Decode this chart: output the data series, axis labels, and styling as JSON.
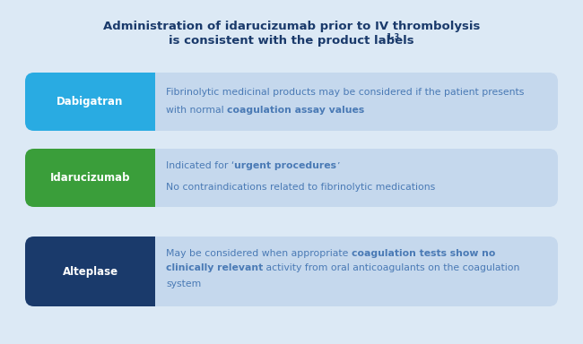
{
  "title_line1": "Administration of idarucizumab prior to IV thrombolysis",
  "title_line2": "is consistent with the product labels",
  "title_superscript": "1-3",
  "background_color": "#dce9f5",
  "row_bg_color": "#c5d8ed",
  "title_color": "#1a3a6b",
  "rows": [
    {
      "label": "Dabigatran",
      "label_color": "#ffffff",
      "label_bg": "#29abe2",
      "lines": [
        [
          {
            "text": "Fibrinolytic medicinal products may be considered if the patient presents",
            "bold": false
          }
        ],
        [
          {
            "text": "with normal ",
            "bold": false
          },
          {
            "text": "coagulation assay values",
            "bold": true
          }
        ]
      ],
      "text_color": "#4a7ab5"
    },
    {
      "label": "Idarucizumab",
      "label_color": "#ffffff",
      "label_bg": "#3a9e3a",
      "lines": [
        [
          {
            "text": "Indicated for ‘",
            "bold": false
          },
          {
            "text": "urgent procedures",
            "bold": true
          },
          {
            "text": "’",
            "bold": false
          }
        ],
        [],
        [
          {
            "text": "No contraindications related to fibrinolytic medications",
            "bold": false
          }
        ]
      ],
      "text_color": "#4a7ab5"
    },
    {
      "label": "Alteplase",
      "label_color": "#ffffff",
      "label_bg": "#1a3a6b",
      "lines": [
        [
          {
            "text": "May be considered when appropriate ",
            "bold": false
          },
          {
            "text": "coagulation tests show no",
            "bold": true
          }
        ],
        [
          {
            "text": "clinically relevant",
            "bold": true
          },
          {
            "text": " activity from oral anticoagulants on the coagulation",
            "bold": false
          }
        ],
        [
          {
            "text": "system",
            "bold": false
          }
        ]
      ],
      "text_color": "#4a7ab5"
    }
  ],
  "fig_width": 6.5,
  "fig_height": 3.84,
  "dpi": 100
}
